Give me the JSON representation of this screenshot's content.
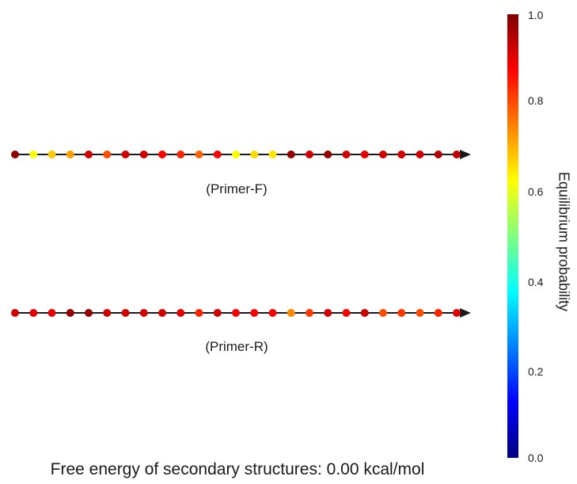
{
  "diagram": {
    "strands": [
      {
        "label": "(Primer-F)",
        "probabilities": [
          0.98,
          0.62,
          0.68,
          0.72,
          0.92,
          0.8,
          0.92,
          0.92,
          0.88,
          0.84,
          0.78,
          0.88,
          0.63,
          0.66,
          0.65,
          0.98,
          0.92,
          0.98,
          0.92,
          0.9,
          0.92,
          0.92,
          0.92,
          0.95,
          0.94
        ]
      },
      {
        "label": "(Primer-R)",
        "probabilities": [
          0.92,
          0.9,
          0.9,
          0.98,
          0.98,
          0.92,
          0.92,
          0.92,
          0.92,
          0.9,
          0.84,
          0.92,
          0.88,
          0.88,
          0.88,
          0.74,
          0.82,
          0.92,
          0.88,
          0.92,
          0.8,
          0.82,
          0.8,
          0.84,
          0.9
        ]
      }
    ],
    "footer": "Free energy of secondary structures: 0.00 kcal/mol",
    "colorbar": {
      "title": "Equilibrium probability",
      "ticks": [
        "1.0",
        "0.8",
        "0.6",
        "0.4",
        "0.2",
        "0.0"
      ],
      "colormap": [
        "#00007f",
        "#0000ff",
        "#0080ff",
        "#00ffff",
        "#80ff80",
        "#ffff00",
        "#ff8000",
        "#ff0000",
        "#7f0000"
      ],
      "range": [
        0,
        1
      ]
    },
    "colors": {
      "backbone": "#1a1a1a"
    }
  }
}
